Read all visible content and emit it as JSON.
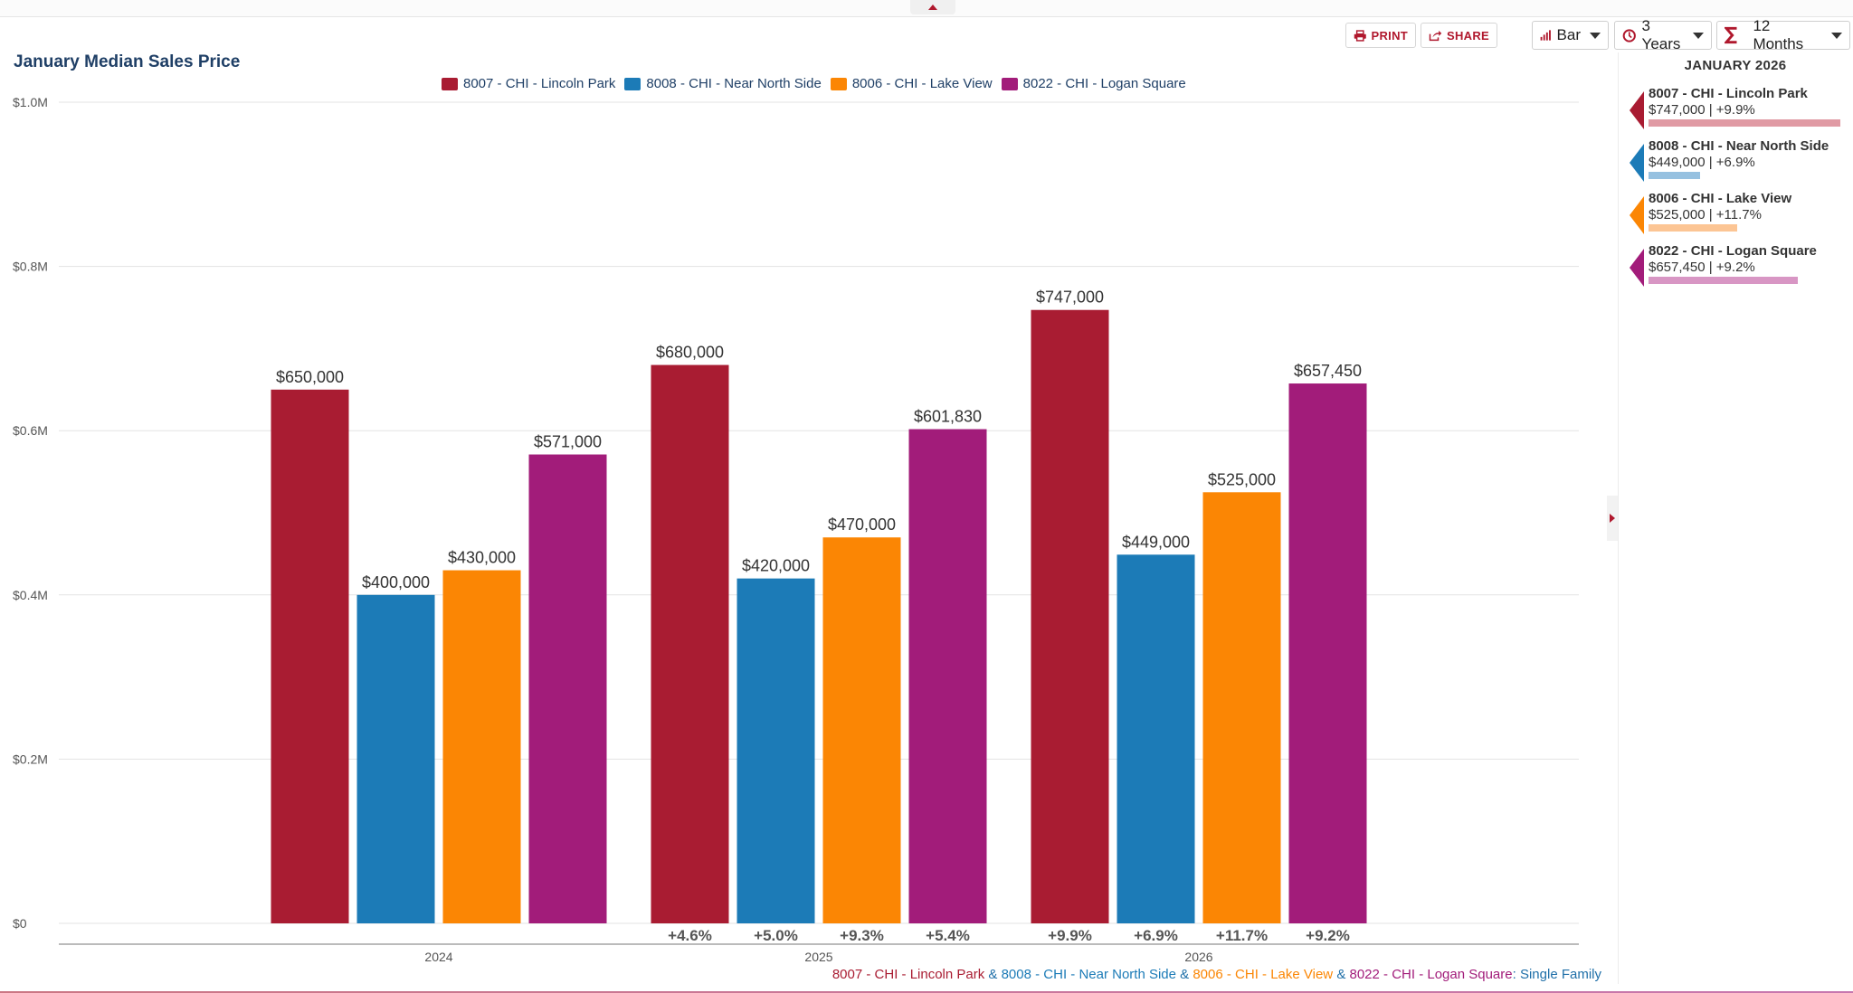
{
  "title": "January Median Sales Price",
  "toolbar": {
    "print_label": "PRINT",
    "share_label": "SHARE"
  },
  "controls": {
    "chart_type": "Bar",
    "range": "3 Years",
    "period": "12 Months"
  },
  "colors": {
    "lincoln_park": "#a91c32",
    "near_north": "#1c7bb7",
    "lake_view": "#fb8604",
    "logan_square": "#a21c7a"
  },
  "chart_data": {
    "type": "bar",
    "title": "January Median Sales Price",
    "categories": [
      "2024",
      "2025",
      "2026"
    ],
    "series": [
      {
        "name": "8007 - CHI - Lincoln Park",
        "color": "#a91c32",
        "values": [
          650000,
          680000,
          747000
        ],
        "value_labels": [
          "$650,000",
          "$680,000",
          "$747,000"
        ],
        "change_labels": [
          "",
          "+4.6%",
          "+9.9%"
        ]
      },
      {
        "name": "8008 - CHI - Near North Side",
        "color": "#1c7bb7",
        "values": [
          400000,
          420000,
          449000
        ],
        "value_labels": [
          "$400,000",
          "$420,000",
          "$449,000"
        ],
        "change_labels": [
          "",
          "+5.0%",
          "+6.9%"
        ]
      },
      {
        "name": "8006 - CHI - Lake View",
        "color": "#fb8604",
        "values": [
          430000,
          470000,
          525000
        ],
        "value_labels": [
          "$430,000",
          "$470,000",
          "$525,000"
        ],
        "change_labels": [
          "",
          "+9.3%",
          "+11.7%"
        ]
      },
      {
        "name": "8022 - CHI - Logan Square",
        "color": "#a21c7a",
        "values": [
          571000,
          601830,
          657450
        ],
        "value_labels": [
          "$571,000",
          "$601,830",
          "$657,450"
        ],
        "change_labels": [
          "",
          "+5.4%",
          "+9.2%"
        ]
      }
    ],
    "y_ticks": [
      0,
      200000,
      400000,
      600000,
      800000,
      1000000
    ],
    "y_tick_labels": [
      "$0",
      "$0.2M",
      "$0.4M",
      "$0.6M",
      "$0.8M",
      "$1.0M"
    ],
    "ylim": [
      0,
      1000000
    ],
    "xlabel": "",
    "ylabel": "",
    "grid": true,
    "legend": "top-center"
  },
  "caption": {
    "parts": [
      {
        "text": "8007 - CHI - Lincoln Park",
        "color": "#a91c32"
      },
      {
        "text": " & ",
        "color": "#1f6fa8"
      },
      {
        "text": "8008 - CHI - Near North Side",
        "color": "#1c7bb7"
      },
      {
        "text": " & ",
        "color": "#1f6fa8"
      },
      {
        "text": "8006 - CHI - Lake View",
        "color": "#fb8604"
      },
      {
        "text": " & ",
        "color": "#1f6fa8"
      },
      {
        "text": "8022 - CHI - Logan Square",
        "color": "#a21c7a"
      },
      {
        "text": ": Single Family",
        "color": "#1f6fa8"
      }
    ]
  },
  "side_panel": {
    "title": "JANUARY 2026",
    "items": [
      {
        "name": "8007 - CHI - Lincoln Park",
        "stat": "$747,000 | +9.9%",
        "color": "#a91c32",
        "bar_color": "#e09aa4",
        "bar_fraction": 1.0
      },
      {
        "name": "8008 - CHI - Near North Side",
        "stat": "$449,000 | +6.9%",
        "color": "#1c7bb7",
        "bar_color": "#96c1e0",
        "bar_fraction": 0.27
      },
      {
        "name": "8006 - CHI - Lake View",
        "stat": "$525,000 | +11.7%",
        "color": "#fb8604",
        "bar_color": "#fcc594",
        "bar_fraction": 0.46
      },
      {
        "name": "8022 - CHI - Logan Square",
        "stat": "$657,450 | +9.2%",
        "color": "#a21c7a",
        "bar_color": "#d896c4",
        "bar_fraction": 0.78
      }
    ]
  }
}
